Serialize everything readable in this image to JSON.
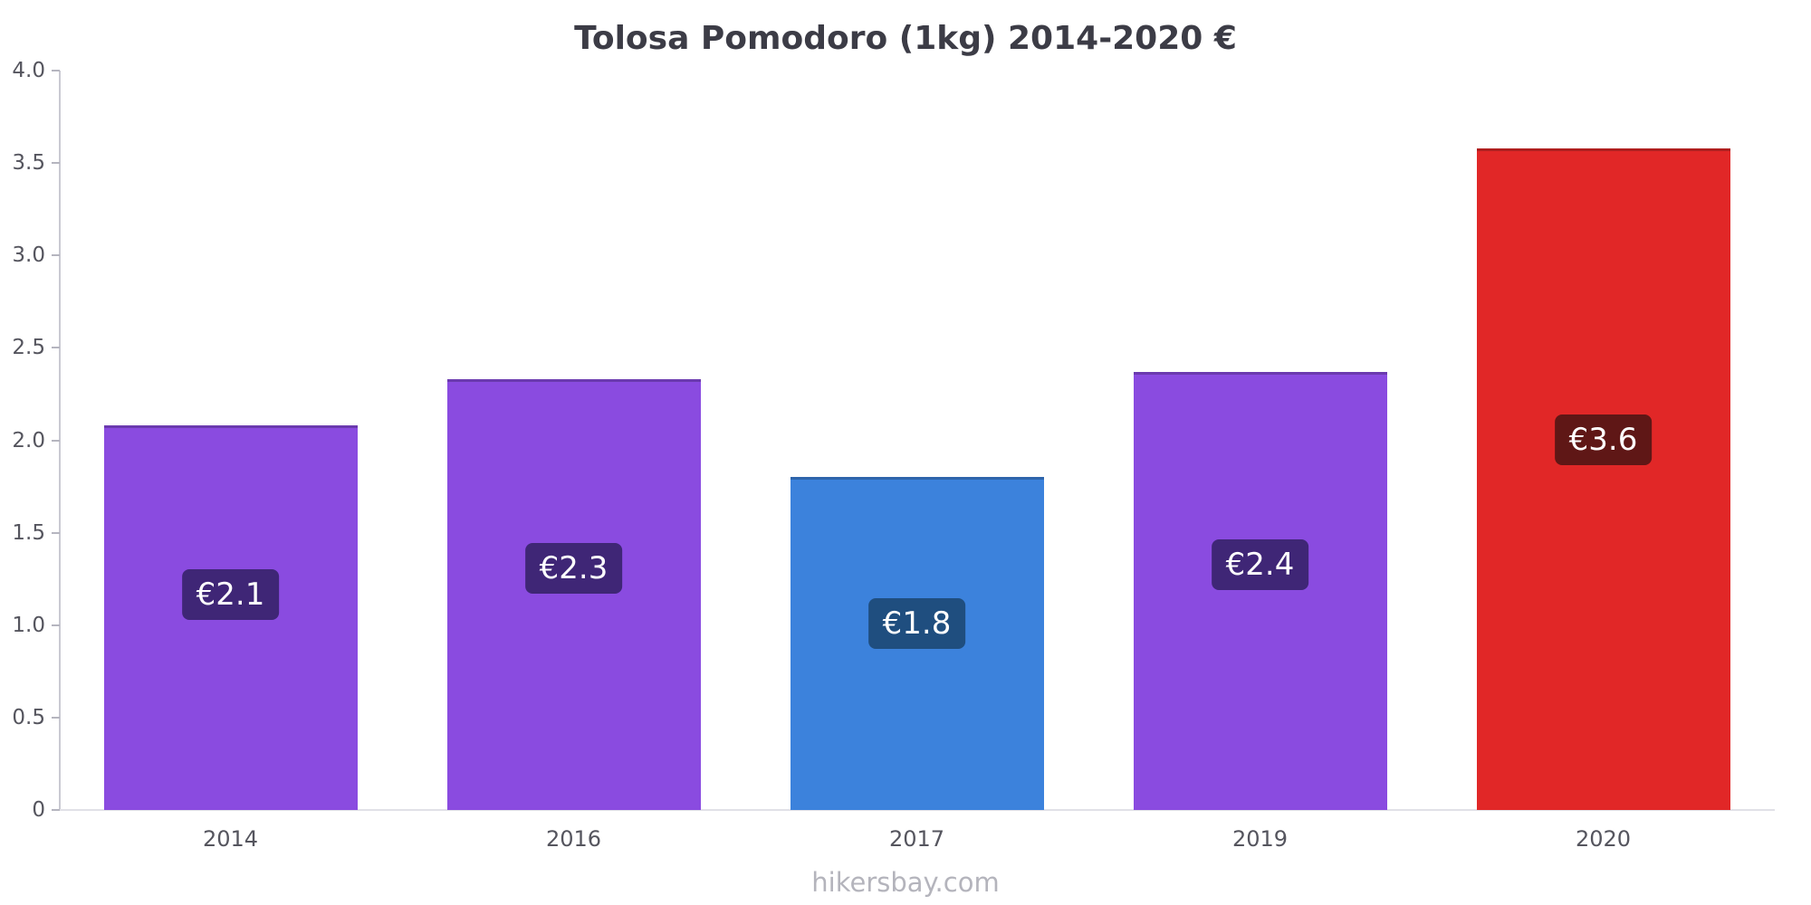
{
  "page": {
    "footer": "hikersbay.com"
  },
  "chart_data": {
    "type": "bar",
    "title": "Tolosa Pomodoro (1kg) 2014-2020 €",
    "categories": [
      "2014",
      "2016",
      "2017",
      "2019",
      "2020"
    ],
    "values": [
      2.08,
      2.33,
      1.8,
      2.37,
      3.58
    ],
    "labels": [
      "€2.1",
      "€2.3",
      "€1.8",
      "€2.4",
      "€3.6"
    ],
    "bar_colors": [
      "#8a4be0",
      "#8a4be0",
      "#3c82dc",
      "#8a4be0",
      "#e12727"
    ],
    "label_bg_colors": [
      "#3f2676",
      "#3f2676",
      "#1f4e7f",
      "#3f2676",
      "#5f1716"
    ],
    "xlabel": "",
    "ylabel": "",
    "ylim": [
      0,
      4.0
    ],
    "yticks": [
      0,
      0.5,
      1.0,
      1.5,
      2.0,
      2.5,
      3.0,
      3.5,
      4.0
    ],
    "ytick_labels": [
      "0",
      "0.5",
      "1.0",
      "1.5",
      "2.0",
      "2.5",
      "3.0",
      "3.5",
      "4.0"
    ],
    "grid": false,
    "legend": false,
    "currency": "€"
  }
}
